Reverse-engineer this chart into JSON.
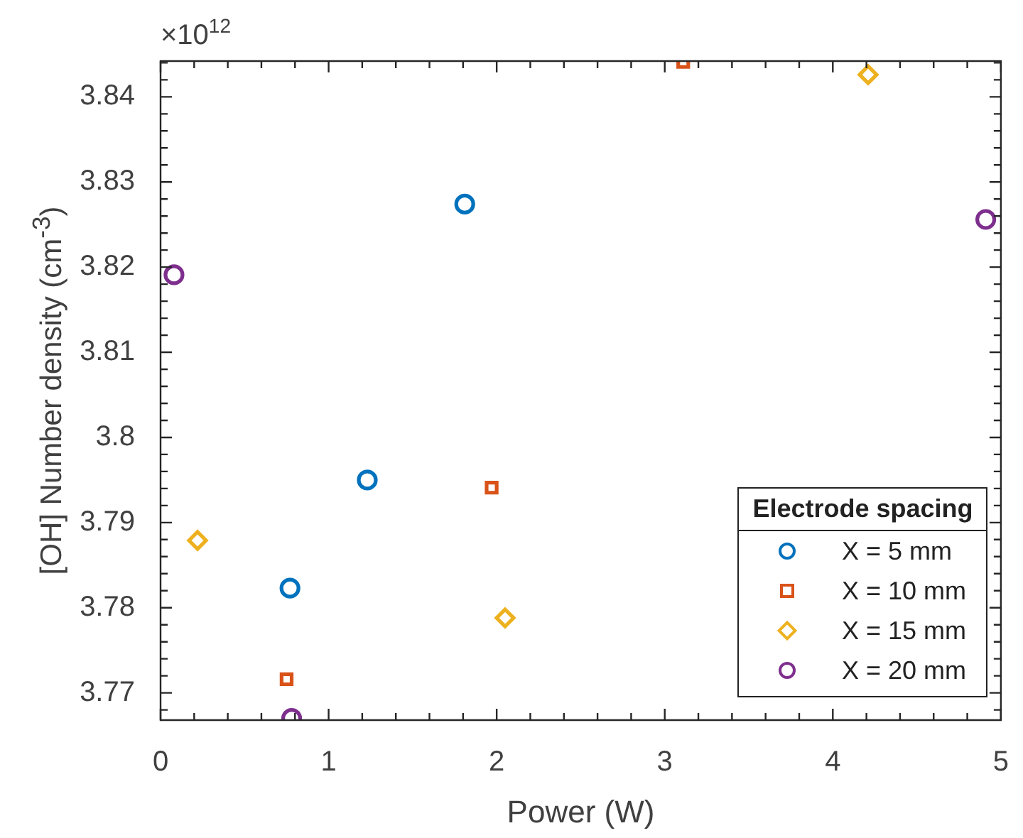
{
  "chart_data": {
    "type": "scatter",
    "xlabel": "Power (W)",
    "ylabel": "[OH] Number density (cm$^{-3}$)",
    "legend_title": "Electrode spacing",
    "annotations": [
      "×10$^{12}$"
    ],
    "series": [
      {
        "name": "X = 5 mm",
        "color": "#0072bd",
        "marker": "circle",
        "x": [
          0.77,
          1.23,
          1.81
        ],
        "values": [
          3.7823,
          3.795,
          3.8274
        ]
      },
      {
        "name": "X = 10 mm",
        "color": "#d95319",
        "marker": "square",
        "x": [
          0.75,
          1.97,
          3.11
        ],
        "values": [
          3.7716,
          3.7941,
          3.8441
        ]
      },
      {
        "name": "X = 15 mm",
        "color": "#edb120",
        "marker": "diamond",
        "x": [
          0.22,
          2.05,
          4.21
        ],
        "values": [
          3.7879,
          3.7788,
          3.8426
        ]
      },
      {
        "name": "X = 20 mm",
        "color": "#7e2f8e",
        "marker": "circle",
        "x": [
          0.08,
          0.78,
          4.91
        ],
        "values": [
          3.8191,
          3.767,
          3.8256
        ]
      }
    ],
    "xlim": [
      0,
      5
    ],
    "ylim": [
      3.7668,
      3.8442
    ],
    "xticks": [
      0,
      {
        "value": 0.2,
        "label": null
      },
      {
        "value": 0.4,
        "label": null
      },
      {
        "value": 0.6,
        "label": null
      },
      {
        "value": 0.8,
        "label": null
      },
      1,
      {
        "value": 1.2,
        "label": null
      },
      {
        "value": 1.4,
        "label": null
      },
      {
        "value": 1.6,
        "label": null
      },
      {
        "value": 1.8,
        "label": null
      },
      2,
      {
        "value": 2.2,
        "label": null
      },
      {
        "value": 2.4,
        "label": null
      },
      {
        "value": 2.6,
        "label": null
      },
      {
        "value": 2.8,
        "label": null
      },
      3,
      {
        "value": 3.2,
        "label": null
      },
      {
        "value": 3.4,
        "label": null
      },
      {
        "value": 3.6,
        "label": null
      },
      {
        "value": 3.8,
        "label": null
      },
      4,
      {
        "value": 4.2,
        "label": null
      },
      {
        "value": 4.4,
        "label": null
      },
      {
        "value": 4.6,
        "label": null
      },
      {
        "value": 4.8,
        "label": null
      },
      5
    ],
    "yticks": [
      {
        "value": 3.768,
        "label": null
      },
      3.77,
      {
        "value": 3.772,
        "label": null
      },
      {
        "value": 3.774,
        "label": null
      },
      {
        "value": 3.776,
        "label": null
      },
      {
        "value": 3.778,
        "label": null
      },
      3.78,
      {
        "value": 3.782,
        "label": null
      },
      {
        "value": 3.784,
        "label": null
      },
      {
        "value": 3.786,
        "label": null
      },
      {
        "value": 3.788,
        "label": null
      },
      3.79,
      {
        "value": 3.792,
        "label": null
      },
      {
        "value": 3.794,
        "label": null
      },
      {
        "value": 3.796,
        "label": null
      },
      {
        "value": 3.798,
        "label": null
      },
      3.8,
      {
        "value": 3.802,
        "label": null
      },
      {
        "value": 3.804,
        "label": null
      },
      {
        "value": 3.806,
        "label": null
      },
      {
        "value": 3.808,
        "label": null
      },
      3.81,
      {
        "value": 3.812,
        "label": null
      },
      {
        "value": 3.814,
        "label": null
      },
      {
        "value": 3.816,
        "label": null
      },
      {
        "value": 3.818,
        "label": null
      },
      3.82,
      {
        "value": 3.822,
        "label": null
      },
      {
        "value": 3.824,
        "label": null
      },
      {
        "value": 3.826,
        "label": null
      },
      {
        "value": 3.828,
        "label": null
      },
      3.83,
      {
        "value": 3.832,
        "label": null
      },
      {
        "value": 3.834,
        "label": null
      },
      {
        "value": 3.836,
        "label": null
      },
      {
        "value": 3.838,
        "label": null
      },
      3.84,
      {
        "value": 3.842,
        "label": null
      },
      {
        "value": 3.844,
        "label": null
      }
    ],
    "grid": false,
    "legend": "bottom right"
  }
}
